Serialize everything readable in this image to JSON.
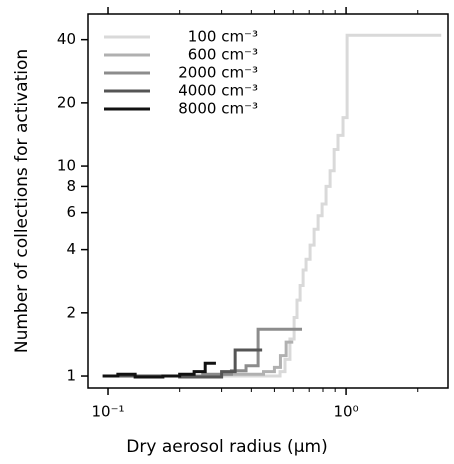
{
  "chart_data": {
    "type": "step",
    "xlabel": "Dry aerosol radius (μm)",
    "ylabel": "Number of collections for activation",
    "xlog": true,
    "ylog": true,
    "xlim": [
      0.0824,
      2.68
    ],
    "ylim": [
      0.877,
      53
    ],
    "xticks": [
      {
        "value": 0.1,
        "label": "10⁻¹"
      },
      {
        "value": 1,
        "label": "10⁰"
      }
    ],
    "xminorticks": [
      0.2,
      0.3,
      0.4,
      0.5,
      0.6,
      0.7,
      0.8,
      0.9,
      2
    ],
    "yticks": [
      1,
      2,
      4,
      6,
      8,
      10,
      20,
      40
    ],
    "legend": "upper left",
    "series": [
      {
        "name": "100 cm⁻³",
        "color": "#d9d9d9",
        "x": [
          0.095,
          0.528,
          0.554,
          0.581,
          0.605,
          0.622,
          0.641,
          0.66,
          0.679,
          0.706,
          0.734,
          0.763,
          0.793,
          0.824,
          0.857,
          0.891,
          0.925,
          0.971,
          1.01,
          2.51
        ],
        "values": [
          1,
          1.05,
          1.2,
          1.5,
          1.9,
          2.3,
          2.7,
          3.2,
          3.6,
          4.2,
          5,
          5.8,
          6.6,
          8,
          9.5,
          12,
          14,
          17,
          42,
          42
        ]
      },
      {
        "name": "600 cm⁻³",
        "color": "#b0b0b0",
        "x": [
          0.095,
          0.3,
          0.45,
          0.5,
          0.53,
          0.56,
          0.6
        ],
        "values": [
          1,
          1.02,
          1.05,
          1.1,
          1.25,
          1.45,
          1.45
        ]
      },
      {
        "name": "2000 cm⁻³",
        "color": "#8c8c8c",
        "x": [
          0.095,
          0.25,
          0.33,
          0.38,
          0.427,
          0.653
        ],
        "values": [
          1,
          1.02,
          1.06,
          1.12,
          1.67,
          1.67
        ]
      },
      {
        "name": "4000 cm⁻³",
        "color": "#555555",
        "x": [
          0.095,
          0.2,
          0.3,
          0.342,
          0.444
        ],
        "values": [
          1,
          0.99,
          1.05,
          1.33,
          1.33
        ]
      },
      {
        "name": "8000 cm⁻³",
        "color": "#111111",
        "x": [
          0.095,
          0.11,
          0.13,
          0.17,
          0.2,
          0.23,
          0.256,
          0.284
        ],
        "values": [
          1,
          1.02,
          0.99,
          1,
          1.02,
          1.05,
          1.15,
          1.15
        ]
      }
    ]
  }
}
